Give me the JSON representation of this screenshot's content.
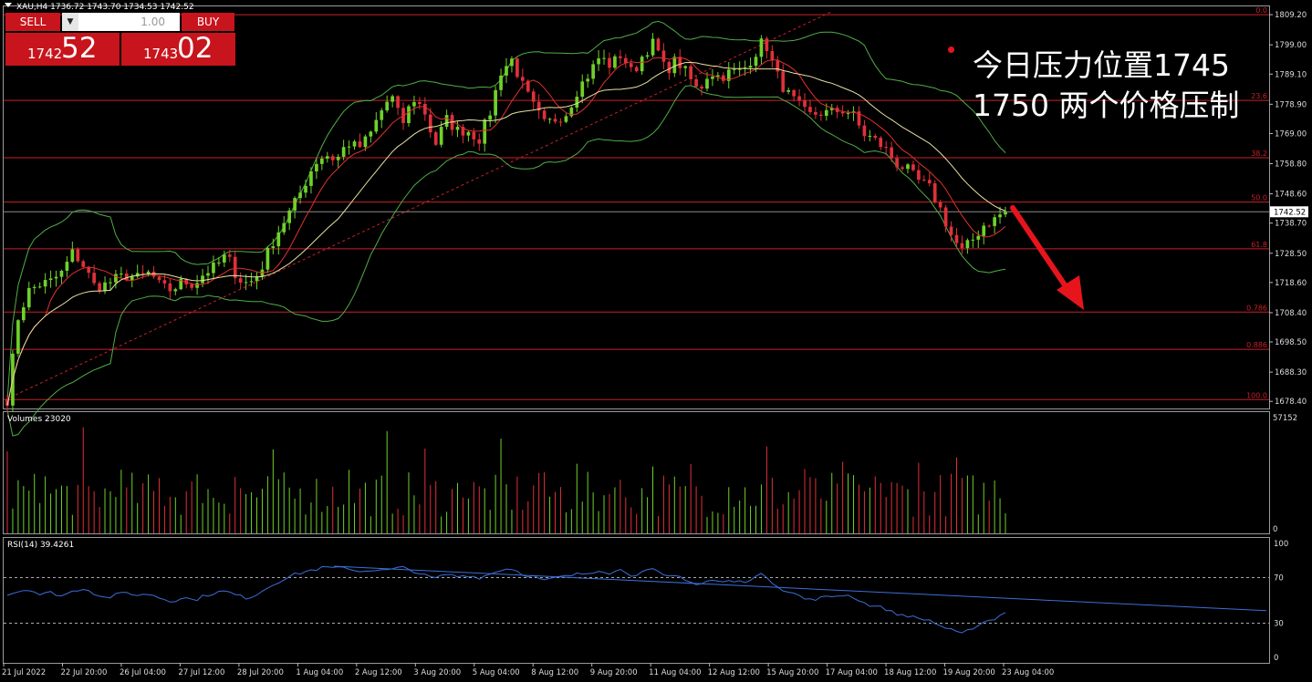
{
  "symbol_info": {
    "header": "XAU,H4  1736.72 1743.70 1734.53 1742.52",
    "volume_label": "Volumes 23020",
    "rsi_label": "RSI(14) 39.4261"
  },
  "trade_panel": {
    "sell_label": "SELL",
    "buy_label": "BUY",
    "lot_value": "1.00",
    "bid_small": "1742",
    "bid_big": "52",
    "ask_small": "1743",
    "ask_big": "02",
    "color": "#c8141c"
  },
  "annotation": {
    "line1": "今日压力位置1745",
    "line2": "1750 两个价格压制"
  },
  "colors": {
    "bull": "#6fd12a",
    "bear": "#e0303a",
    "level": "#c9202a",
    "bb": "#4fae47",
    "ma_red": "#e03030",
    "ma_yellow": "#e8e2a0",
    "rsi_line": "#3c6fd8",
    "arrow": "#e8141c"
  },
  "chart_data": [
    {
      "type": "candlestick",
      "symbol": "XAU",
      "timeframe": "H4",
      "ylim": [
        1676,
        1812
      ],
      "y_ticks": [
        "1809.20",
        "1799.00",
        "1789.10",
        "1778.90",
        "1769.00",
        "1758.80",
        "1748.60",
        "1738.70",
        "1728.50",
        "1718.60",
        "1708.40",
        "1698.50",
        "1688.30",
        "1678.40"
      ],
      "current_price": "1742.52",
      "x_ticks": [
        "21 Jul 2022",
        "22 Jul 20:00",
        "26 Jul 04:00",
        "27 Jul 12:00",
        "28 Jul 20:00",
        "1 Aug 04:00",
        "2 Aug 12:00",
        "3 Aug 20:00",
        "5 Aug 04:00",
        "8 Aug 12:00",
        "9 Aug 20:00",
        "11 Aug 04:00",
        "12 Aug 12:00",
        "15 Aug 20:00",
        "17 Aug 04:00",
        "18 Aug 12:00",
        "19 Aug 20:00",
        "23 Aug 04:00"
      ],
      "close_anchors": [
        1679,
        1707,
        1716,
        1718,
        1719,
        1722,
        1729,
        1724,
        1717,
        1718,
        1720,
        1721,
        1720,
        1722,
        1717,
        1716,
        1719,
        1718,
        1722,
        1724,
        1728,
        1720,
        1718,
        1722,
        1731,
        1738,
        1744,
        1751,
        1759,
        1762,
        1760,
        1766,
        1764,
        1768,
        1776,
        1782,
        1772,
        1781,
        1777,
        1765,
        1774,
        1770,
        1770,
        1767,
        1776,
        1790,
        1794,
        1785,
        1778,
        1772,
        1774,
        1776,
        1784,
        1789,
        1795,
        1792,
        1796,
        1789,
        1796,
        1800,
        1790,
        1794,
        1789,
        1783,
        1790,
        1788,
        1790,
        1790,
        1795,
        1801,
        1790,
        1783,
        1779,
        1775,
        1776,
        1776,
        1777,
        1776,
        1769,
        1767,
        1764,
        1759,
        1757,
        1753,
        1751,
        1744,
        1735,
        1729,
        1733,
        1738,
        1740,
        1743
      ],
      "fib_levels": [
        {
          "label": "0.0",
          "price": 1809.2
        },
        {
          "label": "23.6",
          "price": 1780.2
        },
        {
          "label": "38.2",
          "price": 1760.8
        },
        {
          "label": "50.0",
          "price": 1745.8
        },
        {
          "label": "61.8",
          "price": 1730.0
        },
        {
          "label": "0.786",
          "price": 1708.6
        },
        {
          "label": "0.886",
          "price": 1696.0
        },
        {
          "label": "100.0",
          "price": 1679.0
        }
      ],
      "trendline": {
        "from_price": 1679.0,
        "to_price": 1810.0
      },
      "indicators": [
        "bollinger_bands",
        "moving_average_red",
        "moving_average_yellow"
      ]
    },
    {
      "type": "bar",
      "name": "Volumes",
      "value": 23020,
      "ylim": [
        0,
        57152
      ],
      "y_ticks": [
        "57152",
        "0"
      ]
    },
    {
      "type": "line",
      "name": "RSI(14)",
      "value": 39.4261,
      "ylim": [
        0,
        100
      ],
      "y_ticks": [
        "100",
        "70",
        "30",
        "0"
      ],
      "levels": [
        70,
        30
      ],
      "anchors": [
        55,
        58,
        60,
        55,
        57,
        54,
        58,
        61,
        56,
        52,
        55,
        57,
        54,
        56,
        52,
        49,
        53,
        50,
        54,
        57,
        58,
        54,
        52,
        57,
        63,
        68,
        72,
        75,
        77,
        79,
        78,
        79,
        75,
        77,
        76,
        77,
        79,
        76,
        72,
        69,
        73,
        71,
        72,
        70,
        73,
        77,
        78,
        73,
        71,
        67,
        70,
        71,
        73,
        74,
        77,
        74,
        77,
        72,
        75,
        77,
        70,
        72,
        68,
        63,
        68,
        66,
        67,
        66,
        70,
        73,
        64,
        58,
        55,
        50,
        52,
        53,
        55,
        54,
        48,
        45,
        43,
        38,
        37,
        34,
        33,
        28,
        24,
        20,
        26,
        31,
        34,
        39.4
      ]
    }
  ]
}
